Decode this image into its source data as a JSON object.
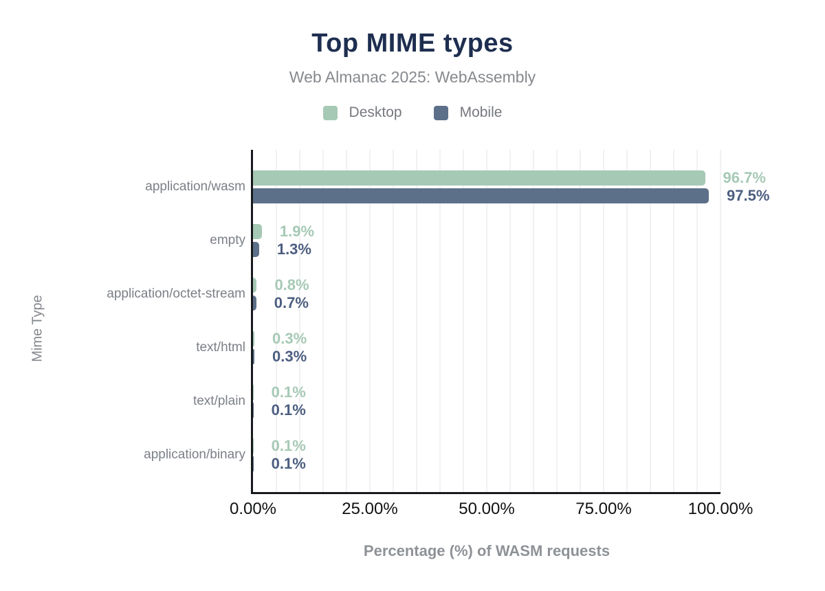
{
  "chart_data": {
    "type": "bar",
    "orientation": "horizontal",
    "title": "Top MIME types",
    "subtitle": "Web Almanac 2025: WebAssembly",
    "xlabel": "Percentage (%) of WASM requests",
    "ylabel": "Mime Type",
    "categories": [
      "application/wasm",
      "empty",
      "application/octet-stream",
      "text/html",
      "text/plain",
      "application/binary"
    ],
    "series": [
      {
        "name": "Desktop",
        "color": "#a6c9b5",
        "label_color": "#a6c9b5",
        "values": [
          96.7,
          1.9,
          0.8,
          0.3,
          0.1,
          0.1
        ],
        "labels": [
          "96.7%",
          "1.9%",
          "0.8%",
          "0.3%",
          "0.1%",
          "0.1%"
        ]
      },
      {
        "name": "Mobile",
        "color": "#5d7089",
        "label_color": "#4c5e80",
        "values": [
          97.5,
          1.3,
          0.7,
          0.3,
          0.1,
          0.1
        ],
        "labels": [
          "97.5%",
          "1.3%",
          "0.7%",
          "0.3%",
          "0.1%",
          "0.1%"
        ]
      }
    ],
    "x_ticks": [
      "0.00%",
      "25.00%",
      "50.00%",
      "75.00%",
      "100.00%"
    ],
    "xlim": [
      0,
      100
    ],
    "grid_interval": 5,
    "grid_on": true,
    "legend_position": "top",
    "colors": {
      "title": "#1e2e50",
      "subtitle": "#85898d",
      "axis_line": "#17191c",
      "gridline": "#f1f1f3",
      "tick_label": "#101113",
      "axis_title": "#8e9297",
      "category_label": "#7b7f86"
    }
  }
}
